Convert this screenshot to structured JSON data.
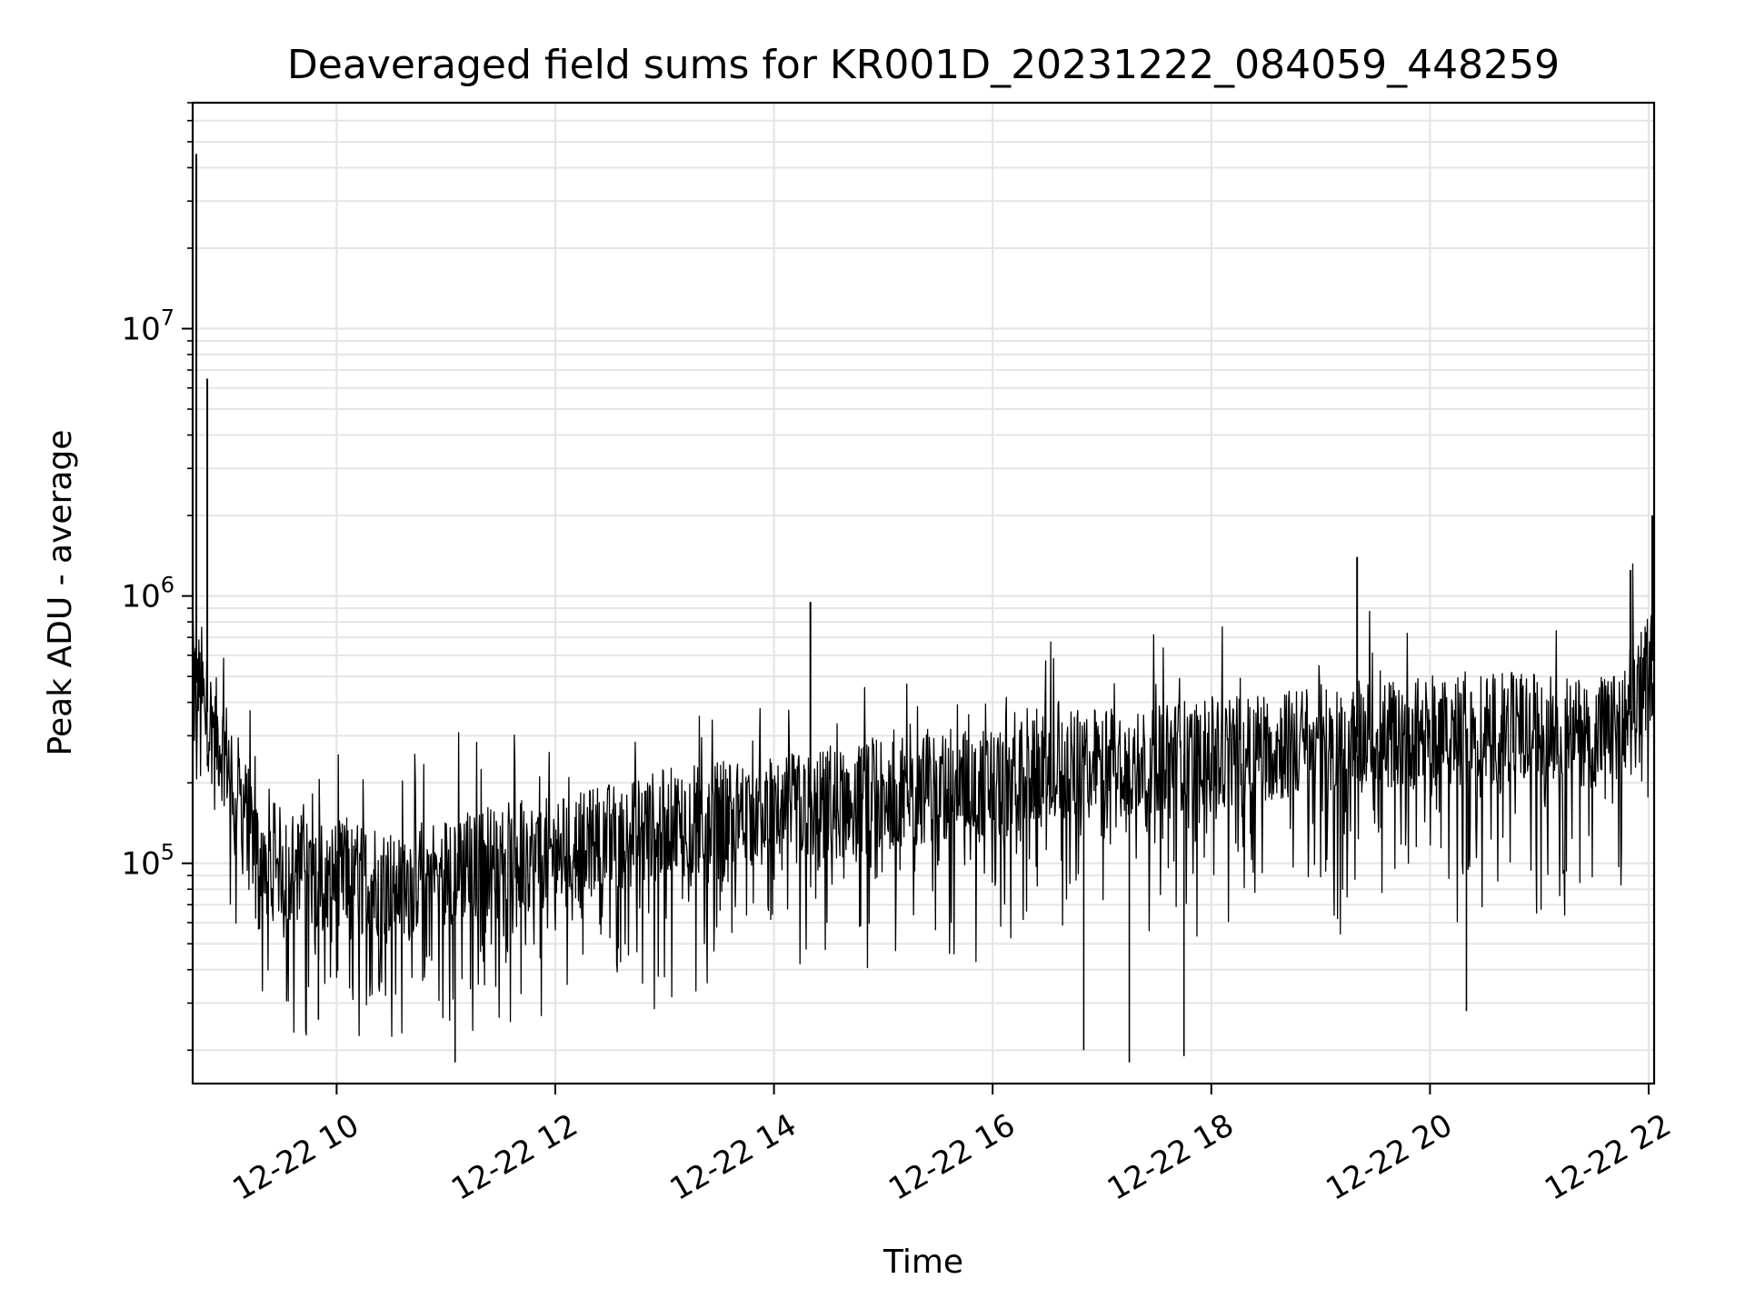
{
  "chart_data": {
    "type": "line",
    "title": "Deaveraged field sums for KR001D_20231222_084059_448259",
    "xlabel": "Time",
    "ylabel": "Peak ADU - average",
    "y_scale": "log",
    "grid": true,
    "line_color": "#000000",
    "grid_color": "#e5e5e5",
    "xlim": [
      "2023-12-22 08:41",
      "2023-12-22 22:03"
    ],
    "ylim": [
      15000,
      70000000
    ],
    "x_ticks": [
      {
        "value": "2023-12-22 10:00",
        "label": "12-22 10"
      },
      {
        "value": "2023-12-22 12:00",
        "label": "12-22 12"
      },
      {
        "value": "2023-12-22 14:00",
        "label": "12-22 14"
      },
      {
        "value": "2023-12-22 16:00",
        "label": "12-22 16"
      },
      {
        "value": "2023-12-22 18:00",
        "label": "12-22 18"
      },
      {
        "value": "2023-12-22 20:00",
        "label": "12-22 20"
      },
      {
        "value": "2023-12-22 22:00",
        "label": "12-22 22"
      }
    ],
    "y_ticks": [
      {
        "value": 100000,
        "base": "10",
        "exp": "5"
      },
      {
        "value": 1000000,
        "base": "10",
        "exp": "6"
      },
      {
        "value": 10000000,
        "base": "10",
        "exp": "7"
      }
    ],
    "series": [
      {
        "x": [
          "2023-12-22 08:41",
          "2023-12-22 08:45",
          "2023-12-22 08:50",
          "2023-12-22 09:00",
          "2023-12-22 09:15",
          "2023-12-22 09:30",
          "2023-12-22 10:00",
          "2023-12-22 10:30",
          "2023-12-22 11:00",
          "2023-12-22 11:30",
          "2023-12-22 12:00",
          "2023-12-22 12:30",
          "2023-12-22 13:00",
          "2023-12-22 13:30",
          "2023-12-22 14:00",
          "2023-12-22 14:30",
          "2023-12-22 15:00",
          "2023-12-22 15:30",
          "2023-12-22 16:00",
          "2023-12-22 16:30",
          "2023-12-22 17:00",
          "2023-12-22 17:30",
          "2023-12-22 18:00",
          "2023-12-22 18:30",
          "2023-12-22 19:00",
          "2023-12-22 19:30",
          "2023-12-22 20:00",
          "2023-12-22 20:30",
          "2023-12-22 21:00",
          "2023-12-22 21:30",
          "2023-12-22 21:45",
          "2023-12-22 22:00",
          "2023-12-22 22:03"
        ],
        "y": [
          500000,
          450000,
          350000,
          250000,
          120000,
          100000,
          90000,
          85000,
          95000,
          105000,
          110000,
          125000,
          140000,
          150000,
          155000,
          165000,
          180000,
          195000,
          200000,
          220000,
          240000,
          250000,
          260000,
          270000,
          290000,
          300000,
          310000,
          320000,
          320000,
          310000,
          320000,
          520000,
          600000
        ],
        "peaks": [
          {
            "x": "2023-12-22 08:43",
            "y": 45000000
          },
          {
            "x": "2023-12-22 08:49",
            "y": 6500000
          },
          {
            "x": "2023-12-22 14:20",
            "y": 950000
          },
          {
            "x": "2023-12-22 19:20",
            "y": 1400000
          },
          {
            "x": "2023-12-22 21:50",
            "y": 1250000
          },
          {
            "x": "2023-12-22 22:02",
            "y": 2000000
          }
        ],
        "troughs": [
          {
            "x": "2023-12-22 09:50",
            "y": 26000
          },
          {
            "x": "2023-12-22 11:05",
            "y": 18000
          },
          {
            "x": "2023-12-22 16:50",
            "y": 20000
          },
          {
            "x": "2023-12-22 17:15",
            "y": 18000
          },
          {
            "x": "2023-12-22 17:45",
            "y": 19000
          },
          {
            "x": "2023-12-22 20:20",
            "y": 28000
          }
        ]
      }
    ]
  }
}
